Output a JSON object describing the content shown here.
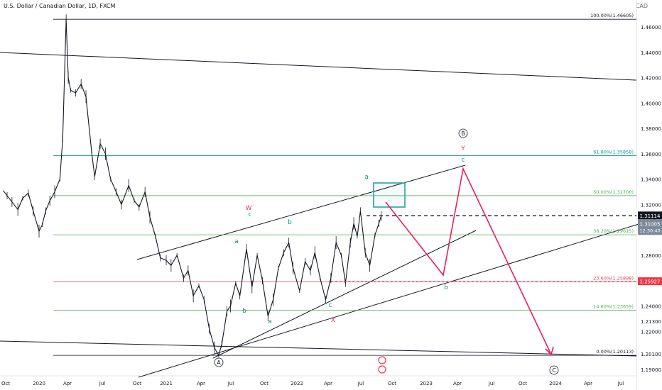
{
  "header": {
    "title": "U.S. Dollar / Canadian Dollar, 1D, FXCM",
    "currency": "CAD"
  },
  "chart_data": {
    "type": "line",
    "title": "U.S. Dollar / Canadian Dollar, 1D, FXCM",
    "currency": "CAD",
    "x_ticks": [
      "Oct",
      "2020",
      "Apr",
      "Jul",
      "Oct",
      "2021",
      "Apr",
      "Jul",
      "Oct",
      "2022",
      "Apr",
      "Jul",
      "Oct",
      "2023",
      "Apr",
      "Jul",
      "Oct",
      "2024",
      "Apr",
      "Jul"
    ],
    "y_ticks": [
      "1.46000",
      "1.44000",
      "1.42000",
      "1.40000",
      "1.38000",
      "1.36000",
      "1.34000",
      "1.32000",
      "1.30000",
      "1.28000",
      "1.26000",
      "1.24000",
      "1.22000",
      "1.21300",
      "1.20100",
      "1.19000"
    ],
    "ylim": [
      1.186,
      1.495
    ],
    "series": [
      {
        "values": [
          {
            "x": "2019-09-20",
            "y": 1.331
          },
          {
            "x": "2019-10-01",
            "y": 1.327
          },
          {
            "x": "2019-10-15",
            "y": 1.322
          },
          {
            "x": "2019-11-01",
            "y": 1.316
          },
          {
            "x": "2019-11-15",
            "y": 1.325
          },
          {
            "x": "2019-12-01",
            "y": 1.329
          },
          {
            "x": "2019-12-15",
            "y": 1.315
          },
          {
            "x": "2020-01-01",
            "y": 1.299
          },
          {
            "x": "2020-01-10",
            "y": 1.304
          },
          {
            "x": "2020-01-20",
            "y": 1.315
          },
          {
            "x": "2020-02-01",
            "y": 1.323
          },
          {
            "x": "2020-02-15",
            "y": 1.33
          },
          {
            "x": "2020-03-01",
            "y": 1.34
          },
          {
            "x": "2020-03-09",
            "y": 1.372
          },
          {
            "x": "2020-03-19",
            "y": 1.466
          },
          {
            "x": "2020-03-25",
            "y": 1.42
          },
          {
            "x": "2020-04-01",
            "y": 1.41
          },
          {
            "x": "2020-04-15",
            "y": 1.408
          },
          {
            "x": "2020-05-01",
            "y": 1.415
          },
          {
            "x": "2020-05-15",
            "y": 1.405
          },
          {
            "x": "2020-06-01",
            "y": 1.36
          },
          {
            "x": "2020-06-09",
            "y": 1.342
          },
          {
            "x": "2020-06-25",
            "y": 1.368
          },
          {
            "x": "2020-07-10",
            "y": 1.36
          },
          {
            "x": "2020-07-25",
            "y": 1.34
          },
          {
            "x": "2020-08-10",
            "y": 1.33
          },
          {
            "x": "2020-08-25",
            "y": 1.32
          },
          {
            "x": "2020-09-15",
            "y": 1.335
          },
          {
            "x": "2020-10-01",
            "y": 1.323
          },
          {
            "x": "2020-10-15",
            "y": 1.318
          },
          {
            "x": "2020-11-01",
            "y": 1.33
          },
          {
            "x": "2020-11-15",
            "y": 1.31
          },
          {
            "x": "2020-12-01",
            "y": 1.295
          },
          {
            "x": "2020-12-15",
            "y": 1.278
          },
          {
            "x": "2021-01-01",
            "y": 1.276
          },
          {
            "x": "2021-01-15",
            "y": 1.272
          },
          {
            "x": "2021-02-01",
            "y": 1.28
          },
          {
            "x": "2021-02-20",
            "y": 1.262
          },
          {
            "x": "2021-03-05",
            "y": 1.268
          },
          {
            "x": "2021-03-20",
            "y": 1.248
          },
          {
            "x": "2021-04-05",
            "y": 1.256
          },
          {
            "x": "2021-04-20",
            "y": 1.245
          },
          {
            "x": "2021-05-05",
            "y": 1.222
          },
          {
            "x": "2021-05-20",
            "y": 1.207
          },
          {
            "x": "2021-06-01",
            "y": 1.201
          },
          {
            "x": "2021-06-10",
            "y": 1.21
          },
          {
            "x": "2021-06-25",
            "y": 1.236
          },
          {
            "x": "2021-07-05",
            "y": 1.24
          },
          {
            "x": "2021-07-20",
            "y": 1.258
          },
          {
            "x": "2021-08-01",
            "y": 1.248
          },
          {
            "x": "2021-08-20",
            "y": 1.285
          },
          {
            "x": "2021-09-05",
            "y": 1.255
          },
          {
            "x": "2021-09-20",
            "y": 1.28
          },
          {
            "x": "2021-10-05",
            "y": 1.26
          },
          {
            "x": "2021-10-21",
            "y": 1.232
          },
          {
            "x": "2021-11-05",
            "y": 1.245
          },
          {
            "x": "2021-11-20",
            "y": 1.27
          },
          {
            "x": "2021-12-05",
            "y": 1.282
          },
          {
            "x": "2021-12-20",
            "y": 1.29
          },
          {
            "x": "2022-01-01",
            "y": 1.27
          },
          {
            "x": "2022-01-20",
            "y": 1.252
          },
          {
            "x": "2022-02-05",
            "y": 1.275
          },
          {
            "x": "2022-02-20",
            "y": 1.268
          },
          {
            "x": "2022-03-05",
            "y": 1.282
          },
          {
            "x": "2022-03-20",
            "y": 1.262
          },
          {
            "x": "2022-04-05",
            "y": 1.245
          },
          {
            "x": "2022-04-20",
            "y": 1.262
          },
          {
            "x": "2022-05-05",
            "y": 1.29
          },
          {
            "x": "2022-05-20",
            "y": 1.28
          },
          {
            "x": "2022-06-01",
            "y": 1.258
          },
          {
            "x": "2022-06-15",
            "y": 1.29
          },
          {
            "x": "2022-06-25",
            "y": 1.305
          },
          {
            "x": "2022-07-05",
            "y": 1.295
          },
          {
            "x": "2022-07-14",
            "y": 1.315
          },
          {
            "x": "2022-07-28",
            "y": 1.282
          },
          {
            "x": "2022-08-10",
            "y": 1.272
          },
          {
            "x": "2022-08-25",
            "y": 1.296
          },
          {
            "x": "2022-09-05",
            "y": 1.305
          },
          {
            "x": "2022-09-12",
            "y": 1.311
          }
        ]
      }
    ],
    "last_price": "1.31114",
    "last_price_sub": "1.31005",
    "countdown": "12:30:40",
    "level_badge": "1.25927",
    "fib_levels": [
      {
        "label": "100.00%(1.46605)",
        "value": 1.46605,
        "color": "#131722"
      },
      {
        "label": "61.80%(1.35858)",
        "value": 1.35858,
        "color": "#089981"
      },
      {
        "label": "50.00%(1.32700)",
        "value": 1.327,
        "color": "#4caf50"
      },
      {
        "label": "38.20%(1.29615)",
        "value": 1.29615,
        "color": "#4caf50"
      },
      {
        "label": "23.60%(1.25898)",
        "value": 1.25898,
        "color": "#f23645"
      },
      {
        "label": "14.60%(1.23659)",
        "value": 1.23659,
        "color": "#4caf50"
      },
      {
        "label": "0.00%(1.20113)",
        "value": 1.20113,
        "color": "#131722"
      }
    ],
    "annotations": [
      {
        "text": "W",
        "color": "#f23645"
      },
      {
        "text": "c",
        "color": "#089981"
      },
      {
        "text": "a",
        "color": "#089981"
      },
      {
        "text": "b",
        "color": "#089981"
      },
      {
        "text": "a",
        "color": "#089981"
      },
      {
        "text": "b",
        "color": "#089981"
      },
      {
        "text": "c",
        "color": "#089981"
      },
      {
        "text": "X",
        "color": "#f23645"
      },
      {
        "text": "a",
        "color": "#089981"
      },
      {
        "text": "B",
        "color": "#131722"
      },
      {
        "text": "Y",
        "color": "#f23645"
      },
      {
        "text": "c",
        "color": "#089981"
      },
      {
        "text": "b",
        "color": "#089981"
      },
      {
        "text": "A",
        "color": "#131722"
      },
      {
        "text": "C",
        "color": "#131722"
      }
    ],
    "grid": false,
    "colors": {
      "price": "#131722",
      "forecast": "#e91e63",
      "box": "#26a69a",
      "price_badge": "#131722",
      "current_badge": "#2962ff",
      "level_badge": "#f23645"
    }
  }
}
